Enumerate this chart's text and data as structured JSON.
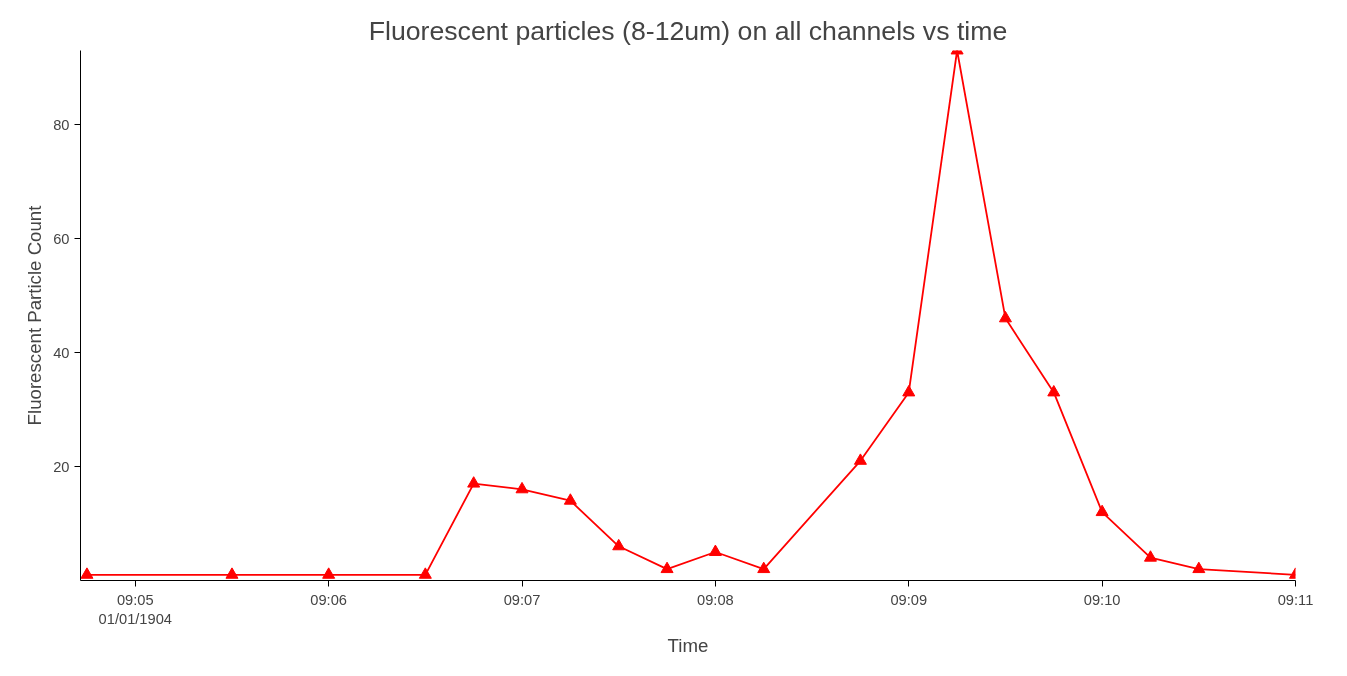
{
  "chart_data": {
    "type": "line",
    "title": "Fluorescent particles (8-12um) on all channels vs time",
    "xlabel": "Time",
    "ylabel": "Fluorescent Particle Count",
    "x": [
      "1904-01-01T09:04:45",
      "1904-01-01T09:05:30",
      "1904-01-01T09:06:00",
      "1904-01-01T09:06:30",
      "1904-01-01T09:06:45",
      "1904-01-01T09:07:00",
      "1904-01-01T09:07:15",
      "1904-01-01T09:07:30",
      "1904-01-01T09:07:45",
      "1904-01-01T09:08:00",
      "1904-01-01T09:08:15",
      "1904-01-01T09:08:45",
      "1904-01-01T09:09:00",
      "1904-01-01T09:09:15",
      "1904-01-01T09:09:30",
      "1904-01-01T09:09:45",
      "1904-01-01T09:10:00",
      "1904-01-01T09:10:15",
      "1904-01-01T09:10:30",
      "1904-01-01T09:11:00"
    ],
    "series": [
      {
        "color": "#ff0000",
        "values": [
          1,
          1,
          1,
          1,
          17,
          16,
          14,
          6,
          2,
          5,
          2,
          21,
          33,
          93,
          46,
          33,
          12,
          4,
          2,
          1
        ]
      }
    ],
    "xlim": [
      "1904-01-01T09:04:43",
      "1904-01-01T09:11:00"
    ],
    "xticks": [
      {
        "value": "1904-01-01T09:05",
        "label": "09:05\n01/01/1904"
      },
      {
        "value": "1904-01-01T09:06",
        "label": "09:06"
      },
      {
        "value": "1904-01-01T09:07",
        "label": "09:07"
      },
      {
        "value": "1904-01-01T09:08",
        "label": "09:08"
      },
      {
        "value": "1904-01-01T09:09",
        "label": "09:09"
      },
      {
        "value": "1904-01-01T09:10",
        "label": "09:10"
      },
      {
        "value": "1904-01-01T09:11",
        "label": "09:11"
      }
    ],
    "ylim": [
      0,
      93
    ],
    "yticks": [
      20,
      40,
      60,
      80
    ],
    "grid": false,
    "marker": "triangle",
    "line_style": "solid"
  }
}
